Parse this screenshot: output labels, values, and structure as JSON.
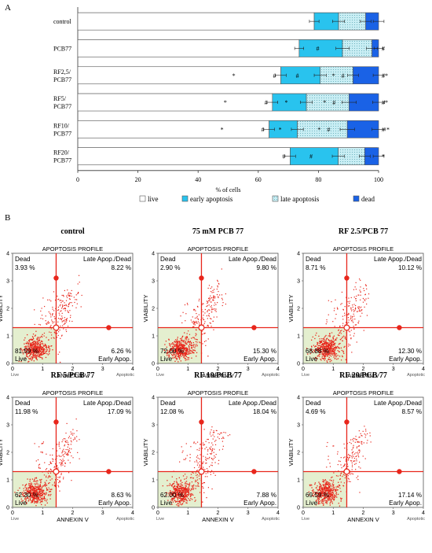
{
  "panel_a_label": "A",
  "panel_b_label": "B",
  "chart_data": [
    {
      "type": "bar",
      "orientation": "horizontal",
      "stacked": true,
      "categories": [
        "control",
        "PCB77",
        "RF2,5/\nPCB77",
        "RF5/\nPCB77",
        "RF10/\nPCB77",
        "RF20/\nPCB77"
      ],
      "xlabel": "% of cells",
      "xlim": [
        0,
        100
      ],
      "xticks": [
        0,
        20,
        40,
        60,
        80,
        100
      ],
      "series": [
        {
          "name": "live",
          "color": "#ffffff",
          "values": [
            78.6,
            73.6,
            67.5,
            64.7,
            63.6,
            70.6
          ]
        },
        {
          "name": "early apoptosis",
          "color": "#29c3ee",
          "values": [
            8.1,
            14.4,
            13.1,
            11.3,
            9.4,
            16.0
          ]
        },
        {
          "name": "late apoptosis",
          "color": "#c9eef4",
          "values": [
            9.0,
            9.8,
            10.9,
            14.2,
            16.6,
            8.8
          ]
        },
        {
          "name": "dead",
          "color": "#1a62e6",
          "values": [
            4.3,
            2.2,
            8.5,
            9.8,
            10.4,
            4.6
          ]
        }
      ],
      "errors": [
        [
          1.6,
          2.0,
          1.8,
          1.8
        ],
        [
          1.5,
          2.2,
          1.8,
          1.5
        ],
        [
          1.8,
          2.0,
          1.8,
          1.8
        ],
        [
          1.8,
          2.0,
          2.4,
          2.0
        ],
        [
          1.8,
          2.0,
          2.4,
          2.2
        ],
        [
          1.8,
          2.0,
          1.8,
          1.8
        ]
      ],
      "annotations": [
        [],
        [
          {
            "after_series": 1,
            "text": "#"
          },
          {
            "after_series": 3,
            "text": "#"
          }
        ],
        [
          {
            "before": true,
            "text": "*"
          },
          {
            "after_series": 0,
            "text": "#"
          },
          {
            "after_series": 1,
            "text": "#"
          },
          {
            "after_series": 2,
            "text": "*"
          },
          {
            "after_series": 2,
            "text": "#"
          },
          {
            "after_series": 3,
            "text": "#*"
          }
        ],
        [
          {
            "before": true,
            "text": "*"
          },
          {
            "after_series": 0,
            "text": "#"
          },
          {
            "after_series": 1,
            "text": "*"
          },
          {
            "after_series": 2,
            "text": "*"
          },
          {
            "after_series": 2,
            "text": "#"
          },
          {
            "after_series": 3,
            "text": "#*"
          }
        ],
        [
          {
            "before": true,
            "text": "*"
          },
          {
            "after_series": 0,
            "text": "#"
          },
          {
            "after_series": 1,
            "text": "*"
          },
          {
            "after_series": 2,
            "text": "*"
          },
          {
            "after_series": 2,
            "text": "#"
          },
          {
            "after_series": 3,
            "text": "# *"
          }
        ],
        [
          {
            "after_series": 0,
            "text": "#"
          },
          {
            "after_series": 1,
            "text": "#"
          },
          {
            "after_series": 3,
            "text": "*"
          }
        ]
      ]
    },
    {
      "type": "scatter",
      "panels": [
        {
          "title": "control",
          "dead": "3.93 %",
          "late": "8.22 %",
          "live": "81.59 %",
          "early": "6.26 %",
          "seed": 11
        },
        {
          "title": "75 mM PCB 77",
          "dead": "2.90 %",
          "late": "9.80 %",
          "live": "72.00 %",
          "early": "15.30 %",
          "seed": 23
        },
        {
          "title": "RF 2.5/PCB 77",
          "dead": "8.71 %",
          "late": "10.12 %",
          "live": "68.88 %",
          "early": "12.30 %",
          "seed": 37
        },
        {
          "title": "RF 5/PCB 77",
          "dead": "11.98 %",
          "late": "17.09 %",
          "live": "62.30 %",
          "early": "8.63 %",
          "seed": 41
        },
        {
          "title": "RF 10/PCB 77",
          "dead": "12.08 %",
          "late": "18.04 %",
          "live": "62.00 %",
          "early": "7.88 %",
          "seed": 53
        },
        {
          "title": "RF 20/PCB 77",
          "dead": "4.69 %",
          "late": "8.57 %",
          "live": "69.59 %",
          "early": "17.14 %",
          "seed": 67
        }
      ],
      "profile_title": "APOPTOSIS PROFILE",
      "q_dead": "Dead",
      "q_late": "Late Apop./Dead",
      "q_live": "Live",
      "q_early": "Early Apop.",
      "xlabel": "ANNEXIN V",
      "ylabel": "VIABILITY",
      "x_left": "Live",
      "x_right": "Apoptotic",
      "xticks": [
        "0",
        "1",
        "2",
        "3",
        "4"
      ],
      "yticks": [
        "0",
        "1",
        "2",
        "3",
        "4"
      ],
      "xlim": [
        0,
        4
      ],
      "ylim": [
        0,
        4
      ],
      "gate_x": 1.45,
      "gate_y": 1.3,
      "dot_color": "#e8261c",
      "live_fill": "#e4efcf"
    }
  ]
}
